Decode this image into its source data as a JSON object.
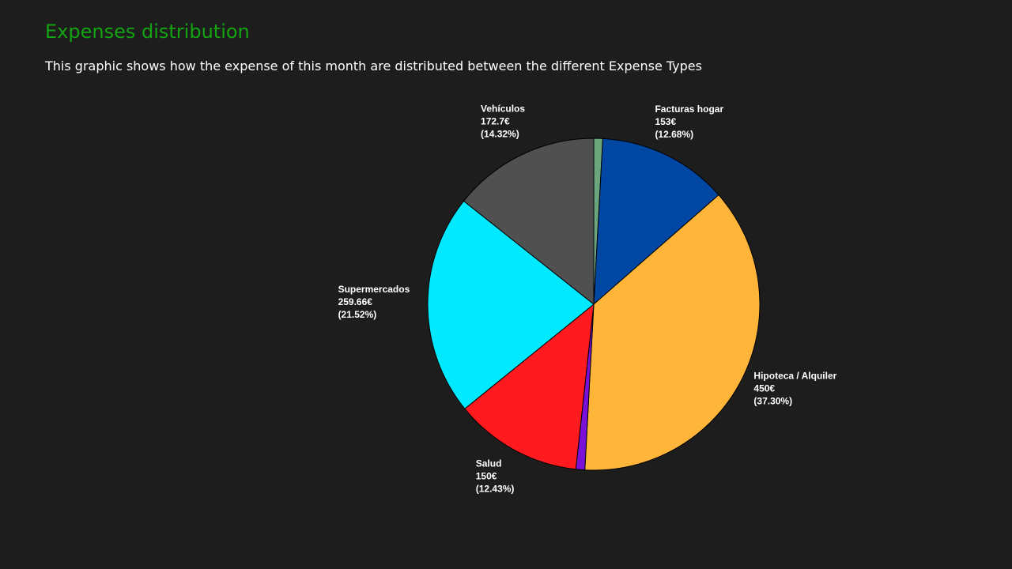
{
  "header": {
    "title": "Expenses distribution",
    "subtitle": "This graphic shows how the expense of this month are distributed between the different Expense Types"
  },
  "chart_data": {
    "type": "pie",
    "categories": [
      null,
      "Facturas hogar",
      "Hipoteca / Alquiler",
      null,
      "Salud",
      "Supermercados",
      "Vehículos"
    ],
    "values": [
      10.5,
      153,
      450,
      10.5,
      150,
      259.66,
      172.7
    ],
    "value_labels": [
      null,
      "153€",
      "450€",
      null,
      "150€",
      "259.66€",
      "172.7€"
    ],
    "percent_labels": [
      null,
      "(12.68%)",
      "(37.30%)",
      null,
      "(12.43%)",
      "(21.52%)",
      "(14.32%)"
    ],
    "colors": [
      "#6aa57c",
      "#0047a3",
      "#ffb53a",
      "#7a10d8",
      "#ff1a1f",
      "#00e9ff",
      "#505050"
    ]
  }
}
